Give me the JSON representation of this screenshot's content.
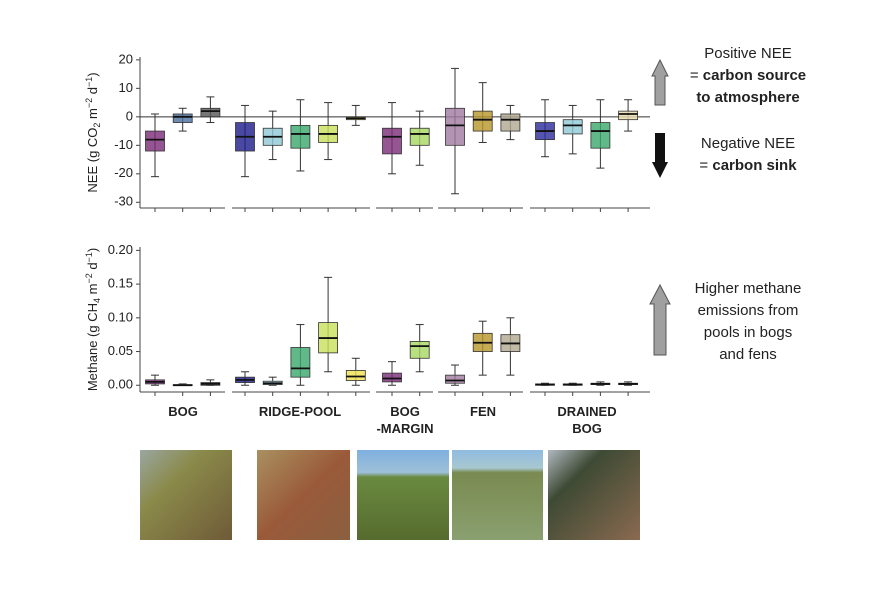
{
  "chart_data": [
    {
      "type": "box",
      "y_label": [
        "NEE (g CO",
        "2",
        " m",
        "−2",
        " d",
        "−1",
        ")"
      ],
      "ylim": [
        -32,
        21
      ],
      "yticks": [
        20,
        10,
        0,
        -10,
        -20,
        -30
      ],
      "hline": 0,
      "groups": [
        {
          "boxes": [
            {
              "color": "#7a2a78",
              "min": -21,
              "q1": -12,
              "median": -8,
              "q3": -5,
              "max": 1
            },
            {
              "color": "#4a6fa0",
              "min": -5,
              "q1": -2,
              "median": 0,
              "q3": 1,
              "max": 3
            },
            {
              "color": "#555555",
              "min": -2,
              "q1": 0,
              "median": 2,
              "q3": 3,
              "max": 7
            }
          ]
        },
        {
          "boxes": [
            {
              "color": "#1c1c8a",
              "min": -21,
              "q1": -12,
              "median": -7,
              "q3": -2,
              "max": 4
            },
            {
              "color": "#8ec9d6",
              "min": -15,
              "q1": -10,
              "median": -7,
              "q3": -4,
              "max": 2
            },
            {
              "color": "#3aa86b",
              "min": -19,
              "q1": -11,
              "median": -6,
              "q3": -3,
              "max": 6
            },
            {
              "color": "#c8e05a",
              "min": -15,
              "q1": -9,
              "median": -6,
              "q3": -3,
              "max": 5
            },
            {
              "color": "#f0e050",
              "min": -3,
              "q1": -1,
              "median": -0.5,
              "q3": 0,
              "max": 4
            }
          ]
        },
        {
          "boxes": [
            {
              "color": "#7a2a78",
              "min": -20,
              "q1": -13,
              "median": -7,
              "q3": -4,
              "max": 5
            },
            {
              "color": "#a8d860",
              "min": -17,
              "q1": -10,
              "median": -6,
              "q3": -4,
              "max": 2
            }
          ]
        },
        {
          "boxes": [
            {
              "color": "#a07aa0",
              "min": -27,
              "q1": -10,
              "median": -3,
              "q3": 3,
              "max": 17
            },
            {
              "color": "#b8962a",
              "min": -9,
              "q1": -5,
              "median": -1,
              "q3": 2,
              "max": 12
            },
            {
              "color": "#b0a890",
              "min": -8,
              "q1": -5,
              "median": -1,
              "q3": 1,
              "max": 4
            }
          ]
        },
        {
          "boxes": [
            {
              "color": "#2a2a9a",
              "min": -14,
              "q1": -8,
              "median": -5,
              "q3": -2,
              "max": 6
            },
            {
              "color": "#8ec9d6",
              "min": -13,
              "q1": -6,
              "median": -3,
              "q3": -1,
              "max": 4
            },
            {
              "color": "#3aa86b",
              "min": -18,
              "q1": -11,
              "median": -5,
              "q3": -2,
              "max": 6
            },
            {
              "color": "#e8dcb0",
              "min": -5,
              "q1": -1,
              "median": 1,
              "q3": 2,
              "max": 6
            }
          ]
        }
      ]
    },
    {
      "type": "box",
      "y_label": [
        "Methane (g CH",
        "4",
        " m",
        "−2",
        " d",
        "−1",
        ")"
      ],
      "ylim": [
        -0.01,
        0.205
      ],
      "yticks": [
        {
          "value": 0.2,
          "label": "0.20"
        },
        {
          "value": 0.15,
          "label": "0.15"
        },
        {
          "value": 0.1,
          "label": "0.10"
        },
        {
          "value": 0.05,
          "label": "0.05"
        },
        {
          "value": 0,
          "label": "0.00"
        }
      ],
      "groups": [
        {
          "boxes": [
            {
              "color": "#7a2a78",
              "min": 0,
              "q1": 0.002,
              "median": 0.005,
              "q3": 0.008,
              "max": 0.015
            },
            {
              "color": "#4a6fa0",
              "min": 0,
              "q1": 0,
              "median": 0,
              "q3": 0.001,
              "max": 0.002
            },
            {
              "color": "#555555",
              "min": 0,
              "q1": 0,
              "median": 0.002,
              "q3": 0.004,
              "max": 0.008
            }
          ]
        },
        {
          "boxes": [
            {
              "color": "#1c1c8a",
              "min": 0,
              "q1": 0.004,
              "median": 0.008,
              "q3": 0.012,
              "max": 0.02
            },
            {
              "color": "#8ec9d6",
              "min": 0,
              "q1": 0.001,
              "median": 0.003,
              "q3": 0.006,
              "max": 0.012
            },
            {
              "color": "#3aa86b",
              "min": 0,
              "q1": 0.012,
              "median": 0.025,
              "q3": 0.056,
              "max": 0.09
            },
            {
              "color": "#c8e05a",
              "min": 0.02,
              "q1": 0.048,
              "median": 0.07,
              "q3": 0.093,
              "max": 0.16
            },
            {
              "color": "#f0e050",
              "min": 0,
              "q1": 0.007,
              "median": 0.013,
              "q3": 0.022,
              "max": 0.04
            }
          ]
        },
        {
          "boxes": [
            {
              "color": "#7a2a78",
              "min": 0,
              "q1": 0.005,
              "median": 0.01,
              "q3": 0.018,
              "max": 0.035
            },
            {
              "color": "#a8d860",
              "min": 0.02,
              "q1": 0.04,
              "median": 0.058,
              "q3": 0.065,
              "max": 0.09
            }
          ]
        },
        {
          "boxes": [
            {
              "color": "#a07aa0",
              "min": 0,
              "q1": 0.003,
              "median": 0.007,
              "q3": 0.015,
              "max": 0.03
            },
            {
              "color": "#b8962a",
              "min": 0.015,
              "q1": 0.05,
              "median": 0.063,
              "q3": 0.077,
              "max": 0.095
            },
            {
              "color": "#b0a890",
              "min": 0.015,
              "q1": 0.05,
              "median": 0.062,
              "q3": 0.075,
              "max": 0.1
            }
          ]
        },
        {
          "boxes": [
            {
              "color": "#2a2a9a",
              "min": 0,
              "q1": 0,
              "median": 0.001,
              "q3": 0.002,
              "max": 0.003
            },
            {
              "color": "#8ec9d6",
              "min": 0,
              "q1": 0,
              "median": 0.001,
              "q3": 0.002,
              "max": 0.003
            },
            {
              "color": "#3aa86b",
              "min": 0,
              "q1": 0.001,
              "median": 0.002,
              "q3": 0.003,
              "max": 0.005
            },
            {
              "color": "#e8dcb0",
              "min": 0,
              "q1": 0.001,
              "median": 0.002,
              "q3": 0.003,
              "max": 0.005
            }
          ]
        }
      ]
    }
  ],
  "group_labels": [
    [
      "BOG"
    ],
    [
      "RIDGE-POOL"
    ],
    [
      "BOG",
      "-MARGIN"
    ],
    [
      "FEN"
    ],
    [
      "DRAINED",
      "BOG"
    ]
  ],
  "annotations": {
    "source": {
      "title": "Positive NEE",
      "prefix": "= ",
      "bold_lines": [
        "carbon source",
        "to atmosphere"
      ]
    },
    "sink": {
      "title": "Negative NEE",
      "prefix": "= ",
      "bold_lines": [
        "carbon sink"
      ]
    },
    "methane": {
      "lines": [
        "Higher methane",
        "emissions from",
        "pools in bogs",
        "and fens"
      ]
    }
  }
}
